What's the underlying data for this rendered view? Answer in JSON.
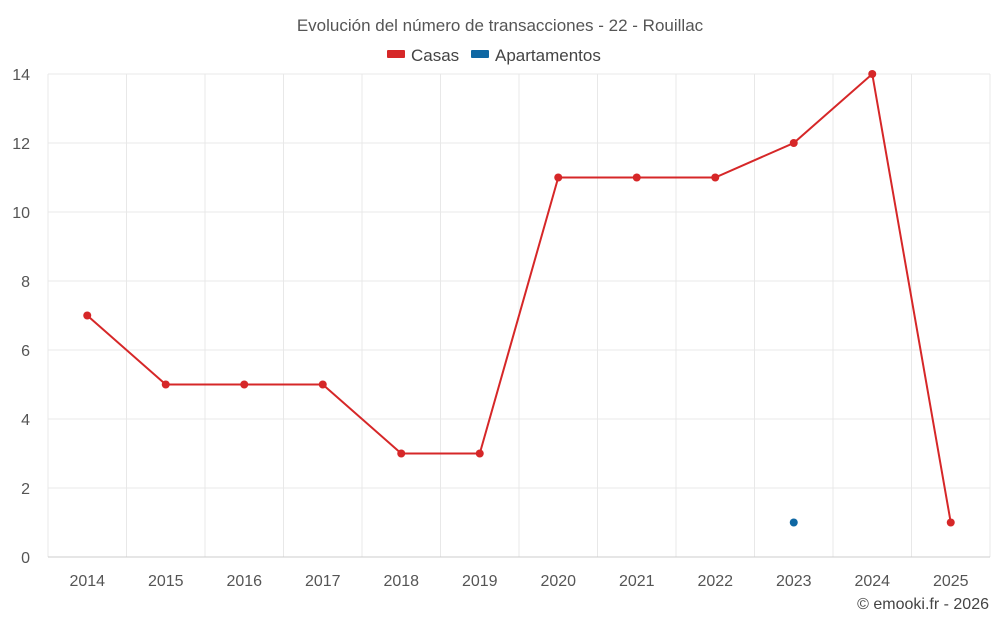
{
  "chart_data": {
    "type": "line",
    "title": "Evolución del número de transacciones - 22 - Rouillac",
    "categories": [
      "2014",
      "2015",
      "2016",
      "2017",
      "2018",
      "2019",
      "2020",
      "2021",
      "2022",
      "2023",
      "2024",
      "2025"
    ],
    "series": [
      {
        "name": "Casas",
        "color": "#d62728",
        "values": [
          7,
          5,
          5,
          5,
          3,
          3,
          11,
          11,
          11,
          12,
          14,
          1
        ]
      },
      {
        "name": "Apartamentos",
        "color": "#0f67a3",
        "values": [
          null,
          null,
          null,
          null,
          null,
          null,
          null,
          null,
          null,
          1,
          null,
          null
        ]
      }
    ],
    "ylim": [
      0,
      14
    ],
    "yticks": [
      0,
      2,
      4,
      6,
      8,
      10,
      12,
      14
    ],
    "grid": true,
    "legend": "top-center",
    "xlabel": "",
    "ylabel": ""
  },
  "credit": "© emooki.fr - 2026"
}
